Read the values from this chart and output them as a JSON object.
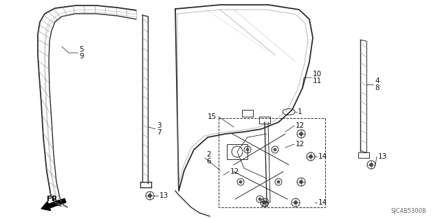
{
  "background_color": "#ffffff",
  "diagram_code": "SJC4B5300B",
  "figsize": [
    6.4,
    3.19
  ],
  "dpi": 100
}
